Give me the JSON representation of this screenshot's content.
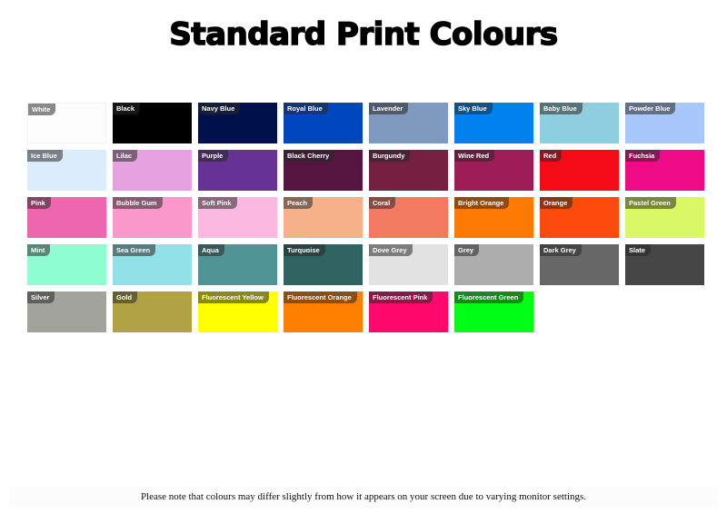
{
  "title": "Standard Print Colours",
  "swatches": [
    {
      "name": "White",
      "color": "#fdfdfd"
    },
    {
      "name": "Black",
      "color": "#000000"
    },
    {
      "name": "Navy Blue",
      "color": "#00104a"
    },
    {
      "name": "Royal Blue",
      "color": "#0047bf"
    },
    {
      "name": "Lavender",
      "color": "#7f9abf"
    },
    {
      "name": "Sky Blue",
      "color": "#0081ee"
    },
    {
      "name": "Baby Blue",
      "color": "#8ecede"
    },
    {
      "name": "Powder Blue",
      "color": "#a8c8fb"
    },
    {
      "name": "Ice Blue",
      "color": "#dbecfb"
    },
    {
      "name": "Lilac",
      "color": "#e5a2de"
    },
    {
      "name": "Purple",
      "color": "#673295"
    },
    {
      "name": "Black Cherry",
      "color": "#54163f"
    },
    {
      "name": "Burgundy",
      "color": "#751f41"
    },
    {
      "name": "Wine Red",
      "color": "#9e1d56"
    },
    {
      "name": "Red",
      "color": "#f50a17"
    },
    {
      "name": "Fuchsia",
      "color": "#ef0a88"
    },
    {
      "name": "Pink",
      "color": "#ec67ad"
    },
    {
      "name": "Bubble Gum",
      "color": "#fb98cb"
    },
    {
      "name": "Soft Pink",
      "color": "#fbb8e0"
    },
    {
      "name": "Peach",
      "color": "#f6b18a"
    },
    {
      "name": "Coral",
      "color": "#f27a60"
    },
    {
      "name": "Bright Orange",
      "color": "#ff7a00"
    },
    {
      "name": "Orange",
      "color": "#fc4b0c"
    },
    {
      "name": "Pastel Green",
      "color": "#daf765"
    },
    {
      "name": "Mint",
      "color": "#8efed2"
    },
    {
      "name": "Sea Green",
      "color": "#91e2e6"
    },
    {
      "name": "Aqua",
      "color": "#4f9596"
    },
    {
      "name": "Turquoise",
      "color": "#2f6461"
    },
    {
      "name": "Dove Grey",
      "color": "#e2e2e2"
    },
    {
      "name": "Grey",
      "color": "#adadad"
    },
    {
      "name": "Dark Grey",
      "color": "#676767"
    },
    {
      "name": "Slate",
      "color": "#464646"
    },
    {
      "name": "Silver",
      "color": "#a2a39c"
    },
    {
      "name": "Gold",
      "color": "#b2a246"
    },
    {
      "name": "Fluorescent Yellow",
      "color": "#ffff00"
    },
    {
      "name": "Fluorescent Orange",
      "color": "#ff7f00"
    },
    {
      "name": "Fluorescent Pink",
      "color": "#ff0a6c"
    },
    {
      "name": "Fluorescent Green",
      "color": "#00ff14"
    }
  ],
  "note": "Please note that colours may differ slightly from how it appears on your screen due to varying monitor settings."
}
